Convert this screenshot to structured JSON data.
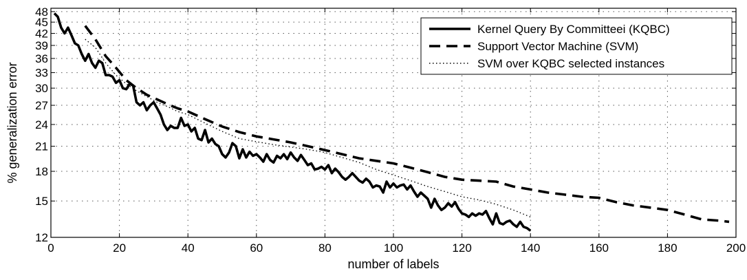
{
  "chart_data": {
    "type": "line",
    "xlabel": "number of labels",
    "ylabel": "% generalization error",
    "xlim": [
      0,
      200
    ],
    "ylim": [
      12,
      49
    ],
    "y_scale": "log",
    "x_ticks": [
      "0",
      "20",
      "40",
      "60",
      "80",
      "100",
      "120",
      "140",
      "160",
      "180",
      "200"
    ],
    "y_ticks": [
      "12",
      "15",
      "18",
      "21",
      "24",
      "27",
      "30",
      "33",
      "36",
      "39",
      "42",
      "45",
      "48"
    ],
    "grid": true,
    "legend_position": "top-right",
    "series": [
      {
        "name": "Kernel Query By Committeei (KQBC)",
        "style": "solid",
        "x": [
          1,
          2,
          3,
          4,
          5,
          6,
          7,
          8,
          9,
          10,
          11,
          12,
          13,
          14,
          15,
          16,
          17,
          18,
          19,
          20,
          21,
          22,
          23,
          24,
          25,
          26,
          27,
          28,
          29,
          30,
          31,
          32,
          33,
          34,
          35,
          36,
          37,
          38,
          39,
          40,
          41,
          42,
          43,
          44,
          45,
          46,
          47,
          48,
          49,
          50,
          51,
          52,
          53,
          54,
          55,
          56,
          57,
          58,
          59,
          60,
          61,
          62,
          63,
          64,
          65,
          66,
          67,
          68,
          69,
          70,
          71,
          72,
          73,
          74,
          75,
          76,
          77,
          78,
          79,
          80,
          81,
          82,
          83,
          84,
          85,
          86,
          87,
          88,
          89,
          90,
          91,
          92,
          93,
          94,
          95,
          96,
          97,
          98,
          99,
          100,
          101,
          102,
          103,
          104,
          105,
          106,
          107,
          108,
          109,
          110,
          111,
          112,
          113,
          114,
          115,
          116,
          117,
          118,
          119,
          120,
          121,
          122,
          123,
          124,
          125,
          126,
          127,
          128,
          129,
          130,
          131,
          132,
          133,
          134,
          135,
          136,
          137,
          138,
          139,
          140
        ],
        "y": [
          47.5,
          46.5,
          43.5,
          42.0,
          43.5,
          41.5,
          39.5,
          39.0,
          37.0,
          35.5,
          37.0,
          35.0,
          34.0,
          35.5,
          35.0,
          32.5,
          32.5,
          32.2,
          31.0,
          31.5,
          30.0,
          29.8,
          30.8,
          30.5,
          27.5,
          27.0,
          27.5,
          26.2,
          27.0,
          27.5,
          26.5,
          25.5,
          24.0,
          23.2,
          23.8,
          23.5,
          23.5,
          25.0,
          23.8,
          24.0,
          23.0,
          23.5,
          22.0,
          21.8,
          23.2,
          21.5,
          22.0,
          21.3,
          21.0,
          20.0,
          19.6,
          20.2,
          21.4,
          21.0,
          19.5,
          20.6,
          19.6,
          20.3,
          19.8,
          20.0,
          19.6,
          19.1,
          20.0,
          19.3,
          19.0,
          19.8,
          19.5,
          20.0,
          19.4,
          20.2,
          19.6,
          19.2,
          19.9,
          19.3,
          18.7,
          18.9,
          18.2,
          18.3,
          18.5,
          18.2,
          18.7,
          17.8,
          18.3,
          17.9,
          17.4,
          17.1,
          17.4,
          17.8,
          17.4,
          17.0,
          16.8,
          17.2,
          16.9,
          16.3,
          16.5,
          16.4,
          15.8,
          16.9,
          16.3,
          16.7,
          16.3,
          16.5,
          16.6,
          16.1,
          16.5,
          15.9,
          15.4,
          15.8,
          15.5,
          15.2,
          14.4,
          15.2,
          14.6,
          14.2,
          14.4,
          14.8,
          14.5,
          14.9,
          14.3,
          13.9,
          13.8,
          13.6,
          13.9,
          13.7,
          13.9,
          13.8,
          14.1,
          13.5,
          13.0,
          13.9,
          13.1,
          13.0,
          13.2,
          13.3,
          13.0,
          12.8,
          13.2,
          12.8,
          12.7,
          12.5
        ]
      },
      {
        "name": "Support Vector Machine (SVM)",
        "style": "dashed",
        "x": [
          10,
          13,
          16,
          19,
          22,
          25,
          28,
          31,
          34,
          37,
          40,
          45,
          50,
          55,
          60,
          65,
          70,
          75,
          80,
          85,
          90,
          95,
          100,
          105,
          110,
          115,
          120,
          125,
          130,
          135,
          140,
          145,
          150,
          155,
          160,
          165,
          170,
          175,
          180,
          185,
          190,
          195,
          198
        ],
        "y": [
          44.0,
          40.5,
          36.5,
          34.0,
          31.5,
          30.0,
          28.8,
          28.0,
          27.2,
          26.5,
          26.0,
          24.8,
          23.7,
          22.9,
          22.3,
          21.9,
          21.5,
          21.0,
          20.5,
          20.0,
          19.5,
          19.2,
          18.9,
          18.4,
          17.9,
          17.4,
          17.1,
          17.0,
          16.9,
          16.4,
          16.1,
          15.8,
          15.6,
          15.4,
          15.3,
          14.9,
          14.6,
          14.4,
          14.2,
          13.8,
          13.4,
          13.3,
          13.2
        ]
      },
      {
        "name": "SVM over KQBC selected instances",
        "style": "dotted",
        "x": [
          10,
          13,
          16,
          19,
          22,
          25,
          28,
          31,
          34,
          37,
          40,
          45,
          50,
          55,
          60,
          65,
          70,
          75,
          80,
          85,
          90,
          95,
          100,
          105,
          110,
          115,
          120,
          125,
          130,
          135,
          140
        ],
        "y": [
          40.5,
          38.5,
          35.0,
          32.5,
          30.8,
          29.5,
          28.5,
          27.5,
          26.8,
          26.0,
          25.5,
          24.2,
          23.0,
          22.0,
          21.6,
          21.2,
          20.9,
          20.6,
          20.2,
          19.6,
          19.0,
          18.2,
          17.6,
          17.0,
          16.4,
          15.9,
          15.4,
          15.1,
          14.7,
          14.2,
          13.6
        ]
      }
    ]
  }
}
